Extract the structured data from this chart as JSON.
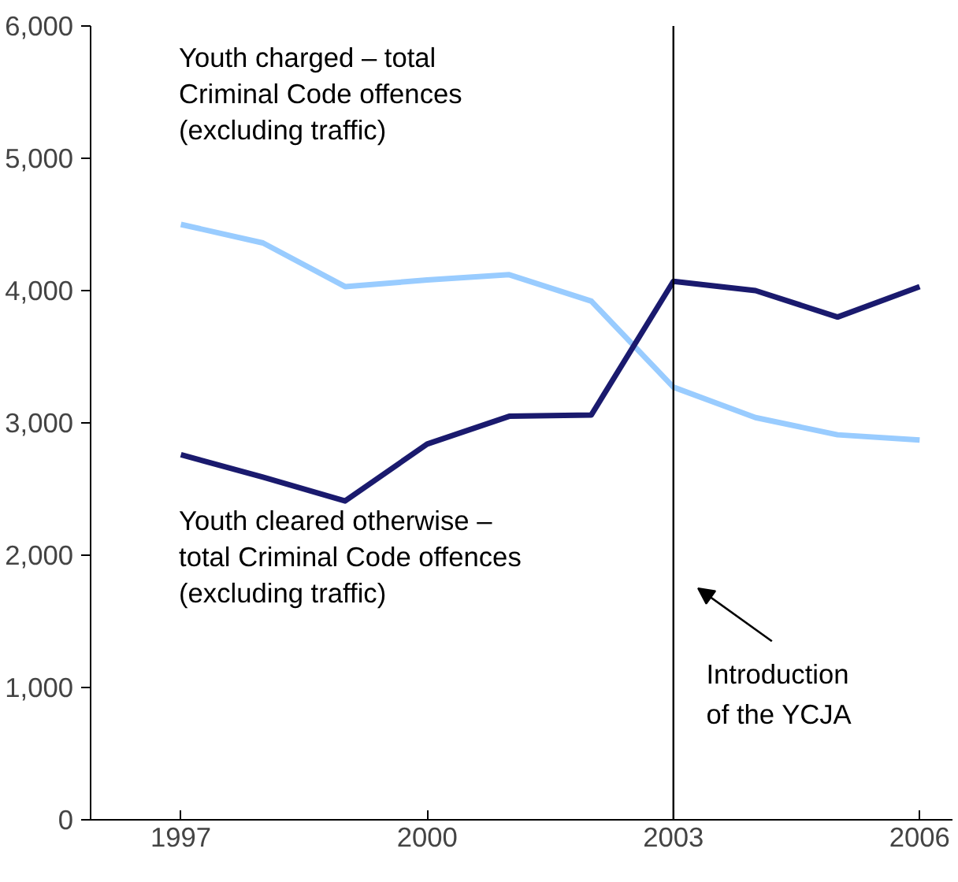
{
  "chart_data": {
    "type": "line",
    "x": [
      1997,
      1998,
      1999,
      2000,
      2001,
      2002,
      2003,
      2004,
      2005,
      2006
    ],
    "series": [
      {
        "name": "Youth charged – total Criminal Code offences (excluding traffic)",
        "color": "#99ccff",
        "values": [
          4500,
          4360,
          4030,
          4080,
          4120,
          3920,
          3270,
          3040,
          2910,
          2870
        ]
      },
      {
        "name": "Youth cleared otherwise – total Criminal Code offences (excluding traffic)",
        "color": "#1a1a6e",
        "values": [
          2760,
          2590,
          2410,
          2840,
          3050,
          3060,
          4070,
          4000,
          3800,
          4030
        ]
      }
    ],
    "xlim": [
      1995.9,
      2006.4
    ],
    "xticks": [
      1997,
      2000,
      2003,
      2006
    ],
    "ylim": [
      0,
      6000
    ],
    "yticks": [
      0,
      {
        "value": 1000,
        "label": "1,000"
      },
      {
        "value": 2000,
        "label": "2,000"
      },
      {
        "value": 3000,
        "label": "3,000"
      },
      {
        "value": 4000,
        "label": "4,000"
      },
      {
        "value": 5000,
        "label": "5,000"
      },
      {
        "value": 6000,
        "label": "6,000"
      }
    ],
    "ref_lines": [
      {
        "axis": "x",
        "value": 2003,
        "label": "Introduction of the YCJA",
        "color": "#000000"
      }
    ],
    "grid": false,
    "marker": "none",
    "line_style": "solid"
  }
}
